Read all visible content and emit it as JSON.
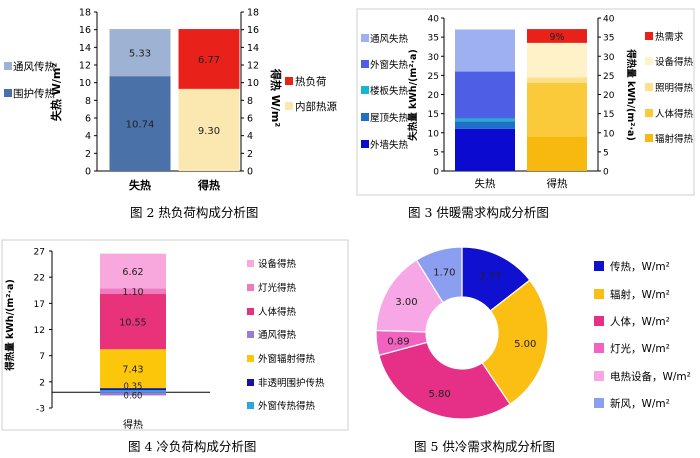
{
  "captions": {
    "fig2": "图 2 热负荷构成分析图",
    "fig3": "图 3 供暖需求构成分析图",
    "fig4": "图 4 冷负荷构成分析图",
    "fig5": "图 5 供冷需求构成分析图"
  },
  "chart_data": [
    {
      "type": "bar",
      "stacked": true,
      "caption": "图 2 热负荷构成分析图",
      "ylabel_left": "失热 W/m²",
      "ylabel_right": "得热 W/m²",
      "ylim": [
        0,
        18
      ],
      "yticks": [
        "0",
        "2",
        "4",
        "6",
        "8",
        "10",
        "12",
        "14",
        "16",
        "18"
      ],
      "categories": [
        "失热",
        "得热"
      ],
      "series": [
        {
          "name": "围护传热",
          "category": "失热",
          "value": 10.74,
          "label": "10.74",
          "color": "#4a72a8"
        },
        {
          "name": "通风传热",
          "category": "失热",
          "value": 5.33,
          "label": "5.33",
          "color": "#9eb3d4"
        },
        {
          "name": "内部热源",
          "category": "得热",
          "value": 9.3,
          "label": "9.30",
          "color": "#fbe7b0"
        },
        {
          "name": "热负荷",
          "category": "得热",
          "value": 6.77,
          "label": "6.77",
          "color": "#e8211b"
        }
      ],
      "legend_left": [
        "通风传热",
        "围护传热"
      ],
      "legend_right": [
        "热负荷",
        "内部热源"
      ]
    },
    {
      "type": "bar",
      "stacked": true,
      "caption": "图 3 供暖需求构成分析图",
      "ylabel_left": "失热量 kWh/(m²·a)",
      "ylabel_right": "得热量 kWh/(m²·a)",
      "ylim": [
        0,
        40
      ],
      "yticks": [
        "0",
        "5",
        "10",
        "15",
        "20",
        "25",
        "30",
        "35",
        "40"
      ],
      "categories": [
        "失热",
        "得热"
      ],
      "series": [
        {
          "name": "外墙失热",
          "category": "失热",
          "value": 11.0,
          "color": "#0a0ad0"
        },
        {
          "name": "屋顶失热",
          "category": "失热",
          "value": 2.0,
          "color": "#1f6fc8"
        },
        {
          "name": "楼板失热",
          "category": "失热",
          "value": 0.7,
          "color": "#17b6cf"
        },
        {
          "name": "外窗失热",
          "category": "失热",
          "value": 12.3,
          "color": "#4e5fe6"
        },
        {
          "name": "通风失热",
          "category": "失热",
          "value": 11.0,
          "color": "#9eaff2"
        },
        {
          "name": "辐射得热",
          "category": "得热",
          "value": 9.0,
          "color": "#f7b90f"
        },
        {
          "name": "人体得热",
          "category": "得热",
          "value": 14.0,
          "color": "#fbca3a"
        },
        {
          "name": "照明得热",
          "category": "得热",
          "value": 1.5,
          "color": "#fde08a"
        },
        {
          "name": "设备得热",
          "category": "得热",
          "value": 9.0,
          "color": "#fff2c9"
        },
        {
          "name": "热需求",
          "category": "得热",
          "value": 3.6,
          "label": "9%",
          "color": "#e8211b"
        }
      ],
      "legend": [
        "通风失热",
        "外窗失热",
        "楼板失热",
        "屋顶失热",
        "外墙失热",
        "热需求",
        "设备得热",
        "照明得热",
        "人体得热",
        "辐射得热"
      ]
    },
    {
      "type": "bar",
      "stacked": true,
      "caption": "图 4 冷负荷构成分析图",
      "ylabel": "得热量 kWh/(m²·a)",
      "ylim": [
        -3,
        27
      ],
      "yticks": [
        "-3",
        "2",
        "7",
        "12",
        "17",
        "22",
        "27"
      ],
      "categories": [
        "得热"
      ],
      "series": [
        {
          "name": "外窗传热得热",
          "value": 0.4,
          "color": "#29a8e0"
        },
        {
          "name": "非透明围护传热",
          "value": 0.4,
          "color": "#1414a0"
        },
        {
          "name": "外窗辐射得热",
          "value": 7.43,
          "label": "7.43",
          "color": "#fcc60a"
        },
        {
          "name": "通风得热",
          "value": -0.6,
          "label": "0.60",
          "color": "#9a7cd8"
        },
        {
          "name": "人体得热",
          "value": 10.55,
          "label": "10.55",
          "color": "#e8327a"
        },
        {
          "name": "灯光得热",
          "value": 1.1,
          "label": "1.10",
          "color": "#f07ac0"
        },
        {
          "name": "设备得热",
          "value": 6.62,
          "label": "6.62",
          "color": "#f8a8dc"
        }
      ],
      "bar_extra_labels": [
        "0.35",
        "0.60"
      ],
      "legend": [
        "设备得热",
        "灯光得热",
        "人体得热",
        "通风得热",
        "外窗辐射得热",
        "非透明围护传热",
        "外窗传热得热"
      ]
    },
    {
      "type": "pie",
      "donut": true,
      "caption": "图 5 供冷需求构成分析图",
      "slices": [
        {
          "name": "传热，W/m²",
          "value": 2.77,
          "label": "2.77",
          "color": "#1010d0"
        },
        {
          "name": "辐射，W/m²",
          "value": 5.0,
          "label": "5.00",
          "color": "#fbbf14"
        },
        {
          "name": "人体，W/m²",
          "value": 5.8,
          "label": "5.80",
          "color": "#e62f86"
        },
        {
          "name": "灯光，W/m²",
          "value": 0.89,
          "label": "0.89",
          "color": "#f262c0"
        },
        {
          "name": "电热设备，W/m²",
          "value": 3.0,
          "label": "3.00",
          "color": "#f7a6e6"
        },
        {
          "name": "新风，W/m²",
          "value": 1.7,
          "label": "1.70",
          "color": "#8c9ef0"
        }
      ]
    }
  ]
}
